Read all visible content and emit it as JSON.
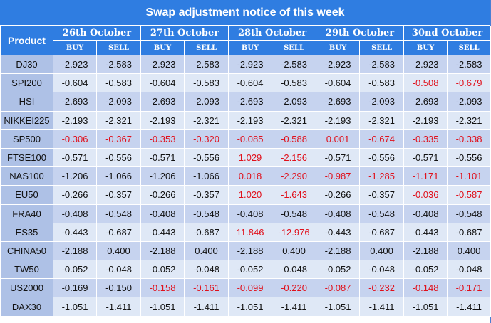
{
  "title": "Swap adjustment notice of this week",
  "header": {
    "product_label": "Product",
    "dates": [
      "26th  October",
      "27th  October",
      "28th  October",
      "29th  October",
      "30nd  October"
    ],
    "buy_label": "BUY",
    "sell_label": "SELL"
  },
  "colors": {
    "header_bg": "#2f7de1",
    "row_odd": "#c6d3ef",
    "row_even": "#dfe8f6",
    "product_col": "#aec1e6",
    "negative_highlight": "#e0101b"
  },
  "rows": [
    {
      "product": "DJ30",
      "cells": [
        {
          "v": "-2.923",
          "red": false
        },
        {
          "v": "-2.583",
          "red": false
        },
        {
          "v": "-2.923",
          "red": false
        },
        {
          "v": "-2.583",
          "red": false
        },
        {
          "v": "-2.923",
          "red": false
        },
        {
          "v": "-2.583",
          "red": false
        },
        {
          "v": "-2.923",
          "red": false
        },
        {
          "v": "-2.583",
          "red": false
        },
        {
          "v": "-2.923",
          "red": false
        },
        {
          "v": "-2.583",
          "red": false
        }
      ]
    },
    {
      "product": "SPI200",
      "cells": [
        {
          "v": "-0.604",
          "red": false
        },
        {
          "v": "-0.583",
          "red": false
        },
        {
          "v": "-0.604",
          "red": false
        },
        {
          "v": "-0.583",
          "red": false
        },
        {
          "v": "-0.604",
          "red": false
        },
        {
          "v": "-0.583",
          "red": false
        },
        {
          "v": "-0.604",
          "red": false
        },
        {
          "v": "-0.583",
          "red": false
        },
        {
          "v": "-0.508",
          "red": true
        },
        {
          "v": "-0.679",
          "red": true
        }
      ]
    },
    {
      "product": "HSI",
      "cells": [
        {
          "v": "-2.693",
          "red": false
        },
        {
          "v": "-2.093",
          "red": false
        },
        {
          "v": "-2.693",
          "red": false
        },
        {
          "v": "-2.093",
          "red": false
        },
        {
          "v": "-2.693",
          "red": false
        },
        {
          "v": "-2.093",
          "red": false
        },
        {
          "v": "-2.693",
          "red": false
        },
        {
          "v": "-2.093",
          "red": false
        },
        {
          "v": "-2.693",
          "red": false
        },
        {
          "v": "-2.093",
          "red": false
        }
      ]
    },
    {
      "product": "NIKKEI225",
      "cells": [
        {
          "v": "-2.193",
          "red": false
        },
        {
          "v": "-2.321",
          "red": false
        },
        {
          "v": "-2.193",
          "red": false
        },
        {
          "v": "-2.321",
          "red": false
        },
        {
          "v": "-2.193",
          "red": false
        },
        {
          "v": "-2.321",
          "red": false
        },
        {
          "v": "-2.193",
          "red": false
        },
        {
          "v": "-2.321",
          "red": false
        },
        {
          "v": "-2.193",
          "red": false
        },
        {
          "v": "-2.321",
          "red": false
        }
      ]
    },
    {
      "product": "SP500",
      "cells": [
        {
          "v": "-0.306",
          "red": true
        },
        {
          "v": "-0.367",
          "red": true
        },
        {
          "v": "-0.353",
          "red": true
        },
        {
          "v": "-0.320",
          "red": true
        },
        {
          "v": "-0.085",
          "red": true
        },
        {
          "v": "-0.588",
          "red": true
        },
        {
          "v": "0.001",
          "red": true
        },
        {
          "v": "-0.674",
          "red": true
        },
        {
          "v": "-0.335",
          "red": true
        },
        {
          "v": "-0.338",
          "red": true
        }
      ]
    },
    {
      "product": "FTSE100",
      "cells": [
        {
          "v": "-0.571",
          "red": false
        },
        {
          "v": "-0.556",
          "red": false
        },
        {
          "v": "-0.571",
          "red": false
        },
        {
          "v": "-0.556",
          "red": false
        },
        {
          "v": "1.029",
          "red": true
        },
        {
          "v": "-2.156",
          "red": true
        },
        {
          "v": "-0.571",
          "red": false
        },
        {
          "v": "-0.556",
          "red": false
        },
        {
          "v": "-0.571",
          "red": false
        },
        {
          "v": "-0.556",
          "red": false
        }
      ]
    },
    {
      "product": "NAS100",
      "cells": [
        {
          "v": "-1.206",
          "red": false
        },
        {
          "v": "-1.066",
          "red": false
        },
        {
          "v": "-1.206",
          "red": false
        },
        {
          "v": "-1.066",
          "red": false
        },
        {
          "v": "0.018",
          "red": true
        },
        {
          "v": "-2.290",
          "red": true
        },
        {
          "v": "-0.987",
          "red": true
        },
        {
          "v": "-1.285",
          "red": true
        },
        {
          "v": "-1.171",
          "red": true
        },
        {
          "v": "-1.101",
          "red": true
        }
      ]
    },
    {
      "product": "EU50",
      "cells": [
        {
          "v": "-0.266",
          "red": false
        },
        {
          "v": "-0.357",
          "red": false
        },
        {
          "v": "-0.266",
          "red": false
        },
        {
          "v": "-0.357",
          "red": false
        },
        {
          "v": "1.020",
          "red": true
        },
        {
          "v": "-1.643",
          "red": true
        },
        {
          "v": "-0.266",
          "red": false
        },
        {
          "v": "-0.357",
          "red": false
        },
        {
          "v": "-0.036",
          "red": true
        },
        {
          "v": "-0.587",
          "red": true
        }
      ]
    },
    {
      "product": "FRA40",
      "cells": [
        {
          "v": "-0.408",
          "red": false
        },
        {
          "v": "-0.548",
          "red": false
        },
        {
          "v": "-0.408",
          "red": false
        },
        {
          "v": "-0.548",
          "red": false
        },
        {
          "v": "-0.408",
          "red": false
        },
        {
          "v": "-0.548",
          "red": false
        },
        {
          "v": "-0.408",
          "red": false
        },
        {
          "v": "-0.548",
          "red": false
        },
        {
          "v": "-0.408",
          "red": false
        },
        {
          "v": "-0.548",
          "red": false
        }
      ]
    },
    {
      "product": "ES35",
      "cells": [
        {
          "v": "-0.443",
          "red": false
        },
        {
          "v": "-0.687",
          "red": false
        },
        {
          "v": "-0.443",
          "red": false
        },
        {
          "v": "-0.687",
          "red": false
        },
        {
          "v": "11.846",
          "red": true
        },
        {
          "v": "-12.976",
          "red": true
        },
        {
          "v": "-0.443",
          "red": false
        },
        {
          "v": "-0.687",
          "red": false
        },
        {
          "v": "-0.443",
          "red": false
        },
        {
          "v": "-0.687",
          "red": false
        }
      ]
    },
    {
      "product": "CHINA50",
      "cells": [
        {
          "v": "-2.188",
          "red": false
        },
        {
          "v": "0.400",
          "red": false
        },
        {
          "v": "-2.188",
          "red": false
        },
        {
          "v": "0.400",
          "red": false
        },
        {
          "v": "-2.188",
          "red": false
        },
        {
          "v": "0.400",
          "red": false
        },
        {
          "v": "-2.188",
          "red": false
        },
        {
          "v": "0.400",
          "red": false
        },
        {
          "v": "-2.188",
          "red": false
        },
        {
          "v": "0.400",
          "red": false
        }
      ]
    },
    {
      "product": "TW50",
      "cells": [
        {
          "v": "-0.052",
          "red": false
        },
        {
          "v": "-0.048",
          "red": false
        },
        {
          "v": "-0.052",
          "red": false
        },
        {
          "v": "-0.048",
          "red": false
        },
        {
          "v": "-0.052",
          "red": false
        },
        {
          "v": "-0.048",
          "red": false
        },
        {
          "v": "-0.052",
          "red": false
        },
        {
          "v": "-0.048",
          "red": false
        },
        {
          "v": "-0.052",
          "red": false
        },
        {
          "v": "-0.048",
          "red": false
        }
      ]
    },
    {
      "product": "US2000",
      "cells": [
        {
          "v": "-0.169",
          "red": false
        },
        {
          "v": "-0.150",
          "red": false
        },
        {
          "v": "-0.158",
          "red": true
        },
        {
          "v": "-0.161",
          "red": true
        },
        {
          "v": "-0.099",
          "red": true
        },
        {
          "v": "-0.220",
          "red": true
        },
        {
          "v": "-0.087",
          "red": true
        },
        {
          "v": "-0.232",
          "red": true
        },
        {
          "v": "-0.148",
          "red": true
        },
        {
          "v": "-0.171",
          "red": true
        }
      ]
    },
    {
      "product": "DAX30",
      "cells": [
        {
          "v": "-1.051",
          "red": false
        },
        {
          "v": "-1.411",
          "red": false
        },
        {
          "v": "-1.051",
          "red": false
        },
        {
          "v": "-1.411",
          "red": false
        },
        {
          "v": "-1.051",
          "red": false
        },
        {
          "v": "-1.411",
          "red": false
        },
        {
          "v": "-1.051",
          "red": false
        },
        {
          "v": "-1.411",
          "red": false
        },
        {
          "v": "-1.051",
          "red": false
        },
        {
          "v": "-1.411",
          "red": false
        }
      ]
    }
  ]
}
